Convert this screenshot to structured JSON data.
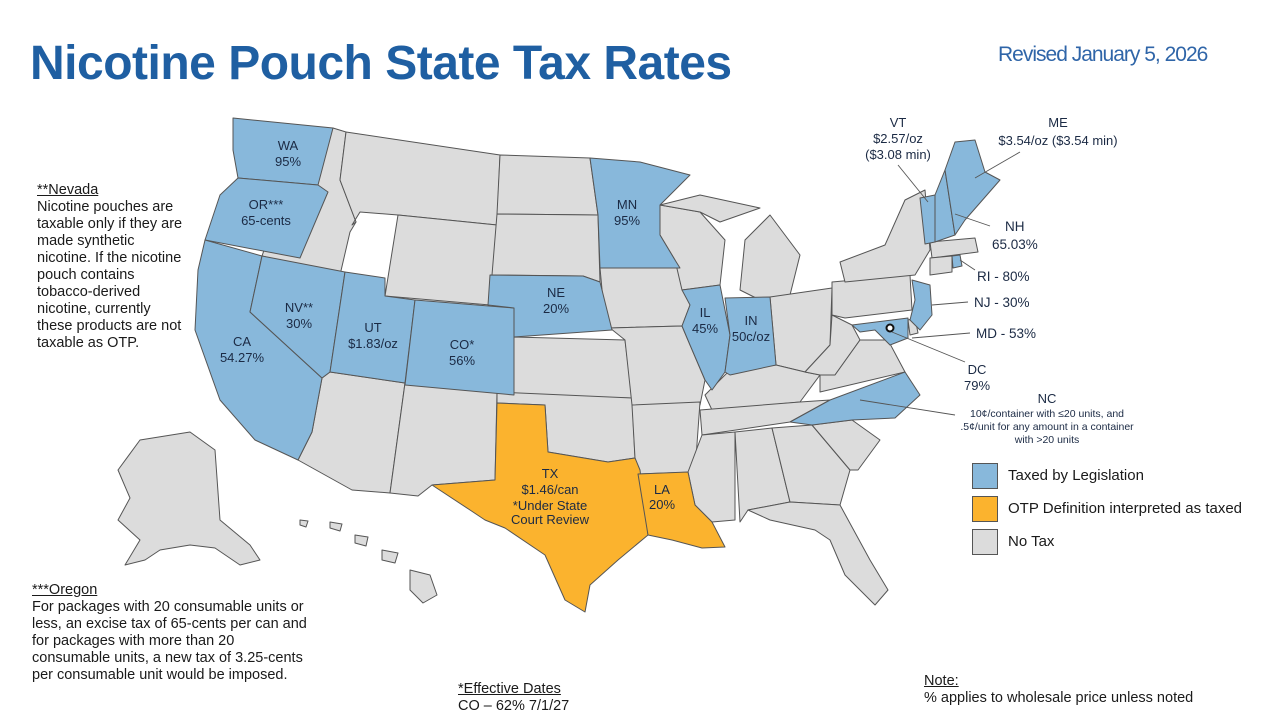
{
  "header": {
    "title": "Nicotine Pouch State Tax Rates",
    "revised": "Revised January 5, 2026"
  },
  "colors": {
    "taxed_by_legislation": "#88b8db",
    "otp_interpreted_as_taxed": "#fbb32e",
    "no_tax": "#dcdcdc",
    "title": "#1f5fa2"
  },
  "notes": {
    "nevada": {
      "heading": "**Nevada",
      "body": "Nicotine pouches are taxable only if they are made synthetic nicotine. If the nicotine pouch contains tobacco-derived nicotine, currently these products are not taxable as OTP."
    },
    "oregon": {
      "heading": "***Oregon",
      "body": "For packages with 20 consumable units or less, an excise tax of 65-cents per can and for packages with more than 20 consumable units, a new tax of 3.25-cents per consumable unit would be imposed."
    },
    "effective": {
      "heading": "*Effective Dates",
      "body": "CO – 62% 7/1/27"
    },
    "note": {
      "heading": "Note:",
      "body": "% applies to wholesale price unless noted"
    }
  },
  "legend": [
    {
      "label": "Taxed by Legislation",
      "category": "taxed"
    },
    {
      "label": "OTP Definition interpreted as taxed",
      "category": "otp"
    },
    {
      "label": "No Tax",
      "category": "none"
    }
  ],
  "states": {
    "WA": {
      "abbr": "WA",
      "rate": "95%",
      "category": "taxed"
    },
    "OR": {
      "abbr": "OR***",
      "rate": "65-cents",
      "category": "taxed"
    },
    "CA": {
      "abbr": "CA",
      "rate": "54.27%",
      "category": "taxed"
    },
    "NV": {
      "abbr": "NV**",
      "rate": "30%",
      "category": "taxed"
    },
    "UT": {
      "abbr": "UT",
      "rate": "$1.83/oz",
      "category": "taxed"
    },
    "CO": {
      "abbr": "CO*",
      "rate": "56%",
      "category": "taxed"
    },
    "NE": {
      "abbr": "NE",
      "rate": "20%",
      "category": "taxed"
    },
    "MN": {
      "abbr": "MN",
      "rate": "95%",
      "category": "taxed"
    },
    "IL": {
      "abbr": "IL",
      "rate": "45%",
      "category": "taxed"
    },
    "IN": {
      "abbr": "IN",
      "rate": "50c/oz",
      "category": "taxed"
    },
    "TX": {
      "abbr": "TX",
      "rate": "$1.46/can",
      "extra1": "*Under State",
      "extra2": "Court Review",
      "category": "otp"
    },
    "LA": {
      "abbr": "LA",
      "rate": "20%",
      "category": "otp"
    },
    "VT": {
      "abbr": "VT",
      "rate": "$2.57/oz",
      "extra": "($3.08 min)",
      "category": "taxed"
    },
    "ME": {
      "abbr": "ME",
      "rate": "$3.54/oz ($3.54 min)",
      "category": "taxed"
    },
    "NH": {
      "abbr": "NH",
      "rate": "65.03%",
      "category": "taxed"
    },
    "RI": {
      "label": "RI - 80%",
      "category": "taxed"
    },
    "NJ": {
      "label": "NJ - 30%",
      "category": "taxed"
    },
    "MD": {
      "label": "MD - 53%",
      "category": "taxed"
    },
    "DC": {
      "abbr": "DC",
      "rate": "79%",
      "category": "taxed"
    },
    "NC": {
      "abbr": "NC",
      "line1": "10¢/container with ≤20 units, and",
      "line2": ".5¢/unit for any amount in a container",
      "line3": "with >20 units",
      "category": "taxed"
    }
  }
}
